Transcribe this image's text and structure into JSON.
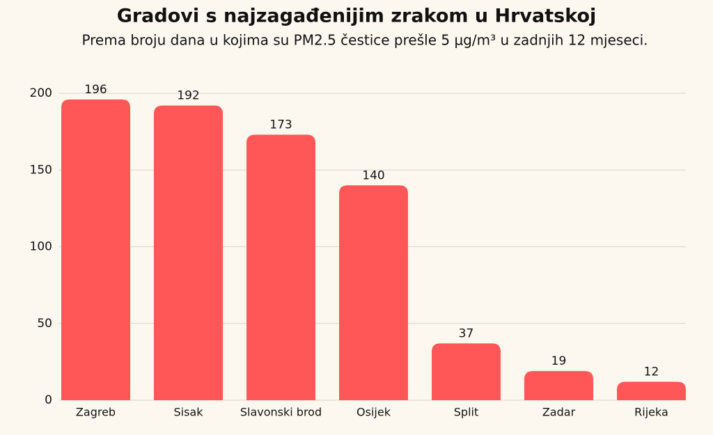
{
  "chart_data": {
    "type": "bar",
    "title": "Gradovi s najzagađenijim zrakom u Hrvatskoj",
    "subtitle": "Prema broju dana u kojima su PM2.5 čestice prešle 5 µg/m³ u zadnjih 12 mjeseci.",
    "categories": [
      "Zagreb",
      "Sisak",
      "Slavonski brod",
      "Osijek",
      "Split",
      "Zadar",
      "Rijeka"
    ],
    "values": [
      196,
      192,
      173,
      140,
      37,
      19,
      12
    ],
    "color": "#ff5757",
    "ylim": [
      0,
      200
    ],
    "yticks": [
      0,
      50,
      100,
      150,
      200
    ],
    "grid": true
  }
}
